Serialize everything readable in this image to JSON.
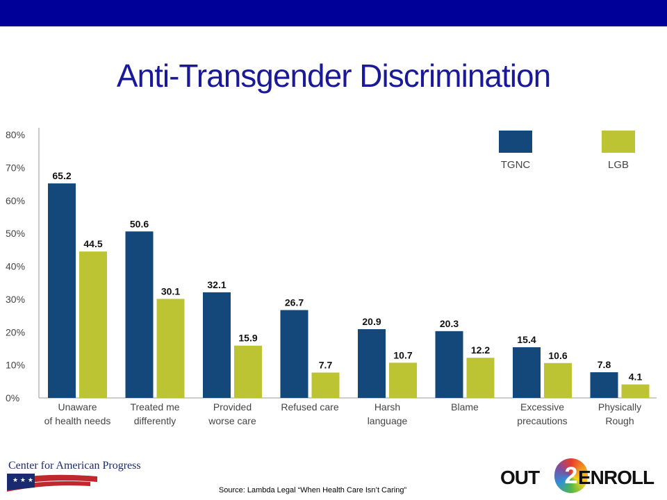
{
  "slide": {
    "title": "Anti-Transgender Discrimination",
    "source": "Source: Lambda Legal “When Health Care Isn’t Caring”",
    "logos": {
      "left": "Center for American Progress",
      "right_prefix": "OUT",
      "right_number": "2",
      "right_suffix": "ENROLL"
    },
    "colors": {
      "topbar": "#000099",
      "title": "#1a1a99"
    }
  },
  "chart_data": {
    "type": "bar",
    "categories": [
      [
        "Unaware",
        "of health needs"
      ],
      [
        "Treated me",
        "differently"
      ],
      [
        "Provided",
        "worse care"
      ],
      [
        "Refused care"
      ],
      [
        "Harsh",
        "language"
      ],
      [
        "Blame"
      ],
      [
        "Excessive",
        "precautions"
      ],
      [
        "Physically",
        "Rough"
      ]
    ],
    "series": [
      {
        "name": "TGNC",
        "color": "#14477a",
        "values": [
          65.2,
          50.6,
          32.1,
          26.7,
          20.9,
          20.3,
          15.4,
          7.8
        ]
      },
      {
        "name": "LGB",
        "color": "#bcc434",
        "values": [
          44.5,
          30.1,
          15.9,
          7.7,
          10.7,
          12.2,
          10.6,
          4.1
        ]
      }
    ],
    "y_ticks": [
      "0%",
      "10%",
      "20%",
      "30%",
      "40%",
      "50%",
      "60%",
      "70%",
      "80%"
    ],
    "ylim": [
      0,
      80
    ],
    "legend_position": "top-right",
    "grid": false
  }
}
